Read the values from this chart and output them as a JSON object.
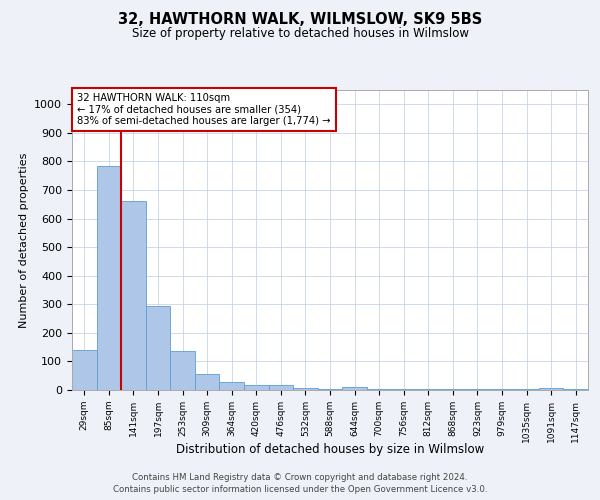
{
  "title1": "32, HAWTHORN WALK, WILMSLOW, SK9 5BS",
  "title2": "Size of property relative to detached houses in Wilmslow",
  "xlabel": "Distribution of detached houses by size in Wilmslow",
  "ylabel": "Number of detached properties",
  "bin_labels": [
    "29sqm",
    "85sqm",
    "141sqm",
    "197sqm",
    "253sqm",
    "309sqm",
    "364sqm",
    "420sqm",
    "476sqm",
    "532sqm",
    "588sqm",
    "644sqm",
    "700sqm",
    "756sqm",
    "812sqm",
    "868sqm",
    "923sqm",
    "979sqm",
    "1035sqm",
    "1091sqm",
    "1147sqm"
  ],
  "bar_heights": [
    140,
    785,
    660,
    295,
    135,
    55,
    28,
    16,
    16,
    7,
    5,
    10,
    5,
    5,
    3,
    3,
    5,
    3,
    2,
    8,
    3
  ],
  "bar_color": "#aec6e8",
  "bar_edge_color": "#5a9fd4",
  "annotation_text_line1": "32 HAWTHORN WALK: 110sqm",
  "annotation_text_line2": "← 17% of detached houses are smaller (354)",
  "annotation_text_line3": "83% of semi-detached houses are larger (1,774) →",
  "annotation_box_color": "#ffffff",
  "annotation_box_edge": "#cc0000",
  "vline_color": "#cc0000",
  "vline_x": 1.5,
  "ylim": [
    0,
    1050
  ],
  "yticks": [
    0,
    100,
    200,
    300,
    400,
    500,
    600,
    700,
    800,
    900,
    1000
  ],
  "footer1": "Contains HM Land Registry data © Crown copyright and database right 2024.",
  "footer2": "Contains public sector information licensed under the Open Government Licence v3.0.",
  "bg_color": "#eef2f8",
  "plot_bg_color": "#ffffff",
  "grid_color": "#c8d4e8"
}
